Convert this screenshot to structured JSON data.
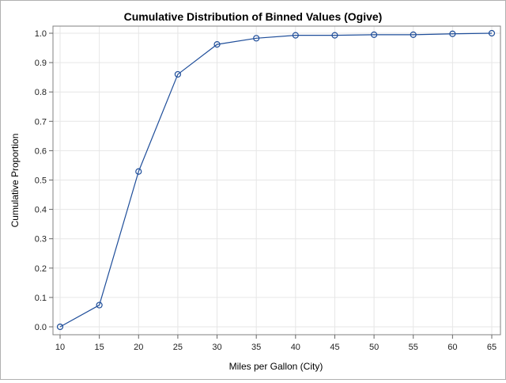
{
  "chart_data": {
    "type": "line",
    "title": "Cumulative Distribution of Binned Values (Ogive)",
    "xlabel": "Miles per Gallon (City)",
    "ylabel": "Cumulative Proportion",
    "x": [
      10,
      15,
      20,
      25,
      30,
      35,
      40,
      45,
      50,
      55,
      60,
      65
    ],
    "series": [
      {
        "values": [
          0.0,
          0.074,
          0.529,
          0.86,
          0.962,
          0.983,
          0.993,
          0.993,
          0.995,
          0.995,
          0.998,
          1.0
        ]
      }
    ],
    "xlim": [
      10,
      65
    ],
    "ylim": [
      0.0,
      1.0
    ],
    "xticks": [
      "10",
      "15",
      "20",
      "25",
      "30",
      "35",
      "40",
      "45",
      "50",
      "55",
      "60",
      "65"
    ],
    "yticks": [
      "0.0",
      "0.1",
      "0.2",
      "0.3",
      "0.4",
      "0.5",
      "0.6",
      "0.7",
      "0.8",
      "0.9",
      "1.0"
    ],
    "grid": true,
    "markers": "open-circle",
    "line_color": "#1f4e9a"
  }
}
